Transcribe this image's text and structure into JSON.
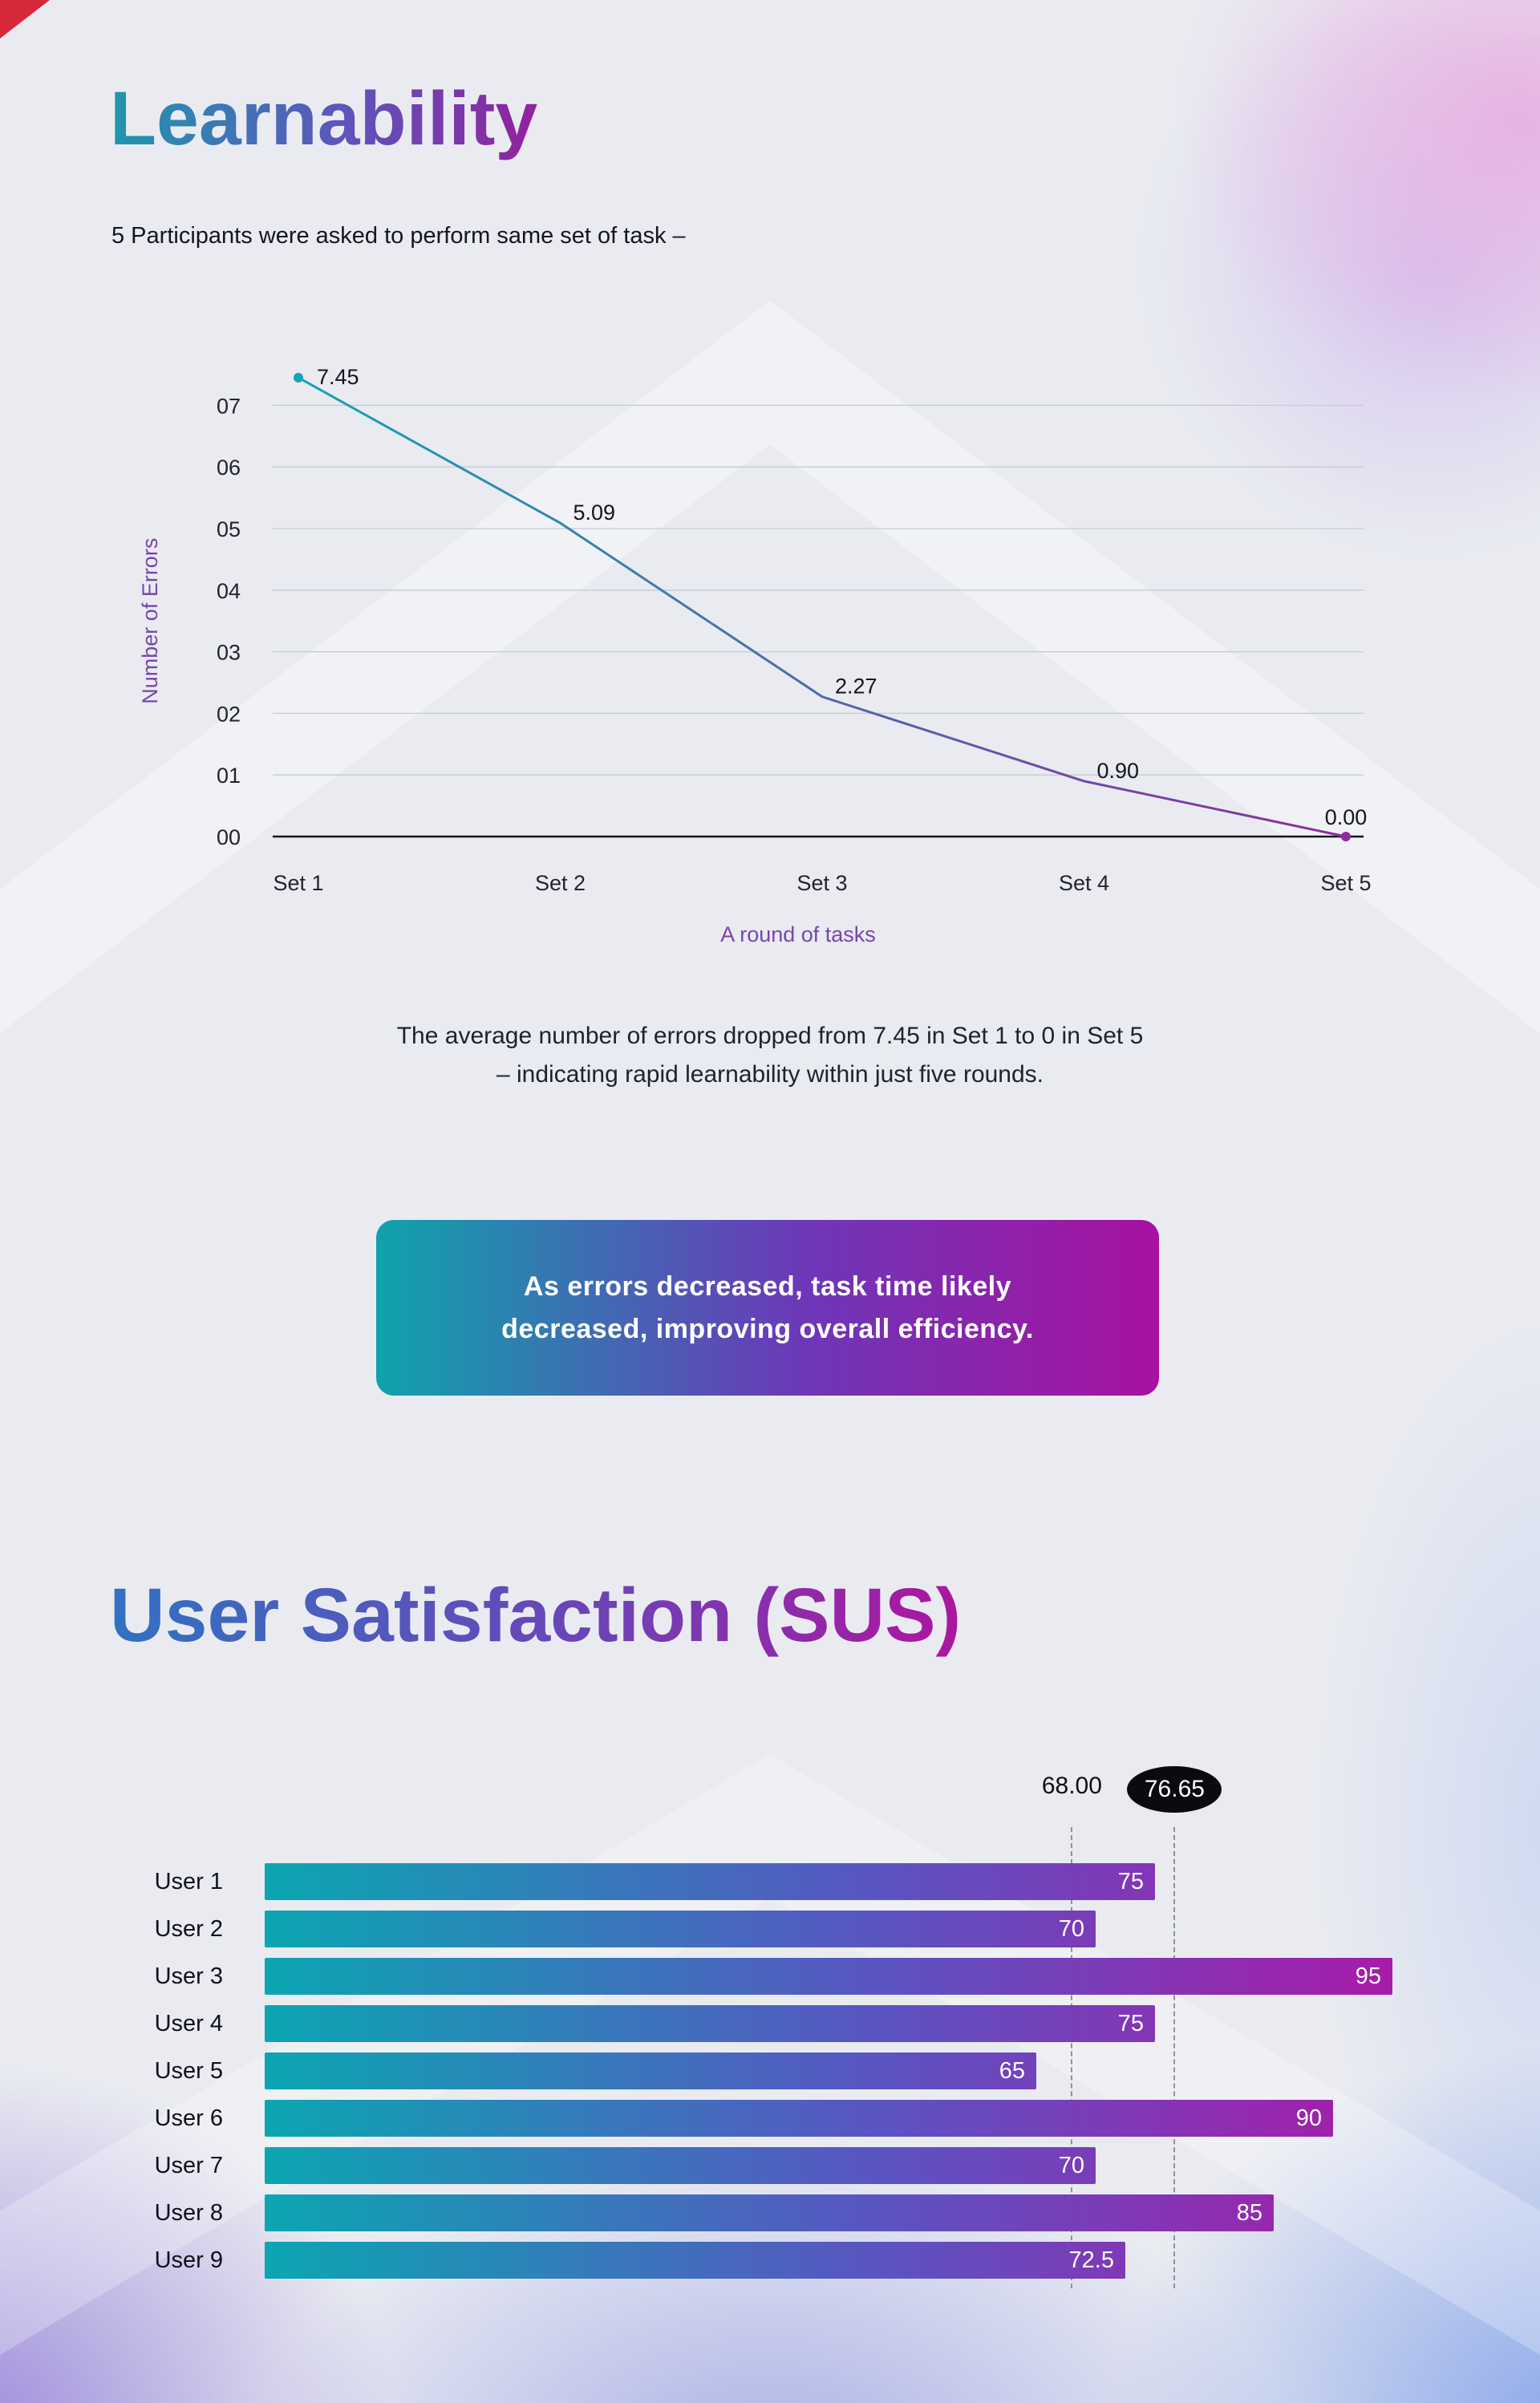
{
  "learnability": {
    "title": "Learnability",
    "subtitle": "5 Participants were asked to perform same set of task –",
    "caption_line1": "The average number of errors dropped from 7.45 in Set 1 to 0 in Set 5",
    "caption_line2": "– indicating rapid learnability within just five rounds.",
    "callout_line1": "As errors decreased, task time likely",
    "callout_line2": "decreased, improving overall efficiency."
  },
  "sus": {
    "title": "User Satisfaction (SUS)"
  },
  "chart_data": [
    {
      "type": "line",
      "name": "learnability-errors-line-chart",
      "x": [
        "Set 1",
        "Set 2",
        "Set 3",
        "Set 4",
        "Set 5"
      ],
      "values": [
        7.45,
        5.09,
        2.27,
        0.9,
        0
      ],
      "point_labels": [
        "7.45",
        "5.09",
        "2.27",
        "0.90",
        "0.00"
      ],
      "xlabel": "A round of tasks",
      "ylabel": "Number of Errors",
      "ylim": [
        0,
        7
      ],
      "ytick_labels": [
        "00",
        "01",
        "02",
        "03",
        "04",
        "05",
        "06",
        "07"
      ],
      "grid": true,
      "legend": "none",
      "line_gradient": [
        "#14a3b4",
        "#8e2b9f"
      ]
    },
    {
      "type": "bar",
      "name": "sus-scores-bar-chart",
      "orientation": "horizontal",
      "categories": [
        "User 1",
        "User 2",
        "User 3",
        "User 4",
        "User 5",
        "User 6",
        "User 7",
        "User 8",
        "User 9"
      ],
      "values": [
        75,
        70,
        95,
        75,
        65,
        90,
        70,
        85,
        72.5
      ],
      "value_labels": [
        "75",
        "70",
        "95",
        "75",
        "65",
        "90",
        "70",
        "85",
        "72.5"
      ],
      "xlim": [
        0,
        100
      ],
      "grid": false,
      "reference_lines": [
        {
          "value": 68,
          "label": "68.00",
          "style": "dashed",
          "badge": false
        },
        {
          "value": 76.65,
          "label": "76.65",
          "style": "dashed",
          "badge": true
        }
      ],
      "bar_gradient": [
        "#0ba6b2",
        "#5b53c2",
        "#a81ba9"
      ]
    }
  ],
  "colors": {
    "background": "#e9ebf1",
    "title_gradient_start": "#1f97ad",
    "title_gradient_end": "#92219d",
    "sus_title_gradient_start": "#3172c2",
    "sus_title_gradient_end": "#ad159f",
    "callout_gradient_start": "#0fa3ac",
    "callout_gradient_end": "#a811a0",
    "axis_label": "#7746ad",
    "badge_bg": "#0b0b0f",
    "corner_accent": "#d62839"
  }
}
